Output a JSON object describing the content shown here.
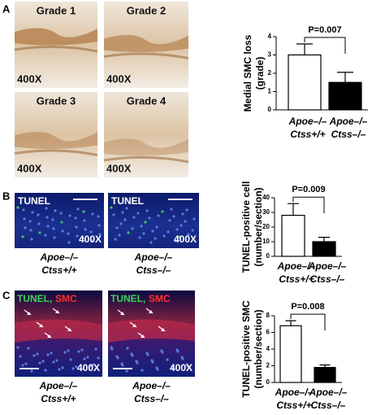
{
  "chart_data": [
    {
      "type": "bar",
      "y_label": [
        "Medial SMC loss",
        "(grade)"
      ],
      "categories": [
        [
          "Apoe–/–",
          "Ctss+/+"
        ],
        [
          "Apoe–/–",
          "Ctss–/–"
        ]
      ],
      "values": [
        3.0,
        1.5
      ],
      "errors": [
        0.6,
        0.55
      ],
      "colors": [
        "#ffffff",
        "#000000"
      ],
      "ylim": [
        0,
        4
      ],
      "yticks": [
        0,
        1,
        2,
        3,
        4
      ],
      "annotation": "P=0.007"
    },
    {
      "type": "bar",
      "y_label": [
        "TUNEL-positive cell",
        "(number/section)"
      ],
      "categories": [
        [
          "Apoe–/–",
          "Ctss+/+"
        ],
        [
          "Apoe–/–",
          "Ctss–/–"
        ]
      ],
      "values": [
        28,
        10
      ],
      "errors": [
        8,
        3
      ],
      "colors": [
        "#ffffff",
        "#000000"
      ],
      "ylim": [
        0,
        40
      ],
      "yticks": [
        0,
        10,
        20,
        30,
        40
      ],
      "annotation": "P=0.009"
    },
    {
      "type": "bar",
      "y_label": [
        "TUNEL-positive SMC",
        "(number/section)"
      ],
      "categories": [
        [
          "Apoe–/–",
          "Ctss+/+"
        ],
        [
          "Apoe–/–",
          "Ctss–/–"
        ]
      ],
      "values": [
        6.8,
        1.8
      ],
      "errors": [
        0.6,
        0.3
      ],
      "colors": [
        "#ffffff",
        "#000000"
      ],
      "ylim": [
        0,
        8
      ],
      "yticks": [
        0,
        2,
        4,
        6,
        8
      ],
      "annotation": "P=0.008"
    }
  ],
  "panels": [
    {
      "letter": "A",
      "images": [
        {
          "label": "Grade 1",
          "magnification": "400X"
        },
        {
          "label": "Grade 2",
          "magnification": "400X"
        },
        {
          "label": "Grade 3",
          "magnification": "400X"
        },
        {
          "label": "Grade 4",
          "magnification": "400X"
        }
      ]
    },
    {
      "letter": "B",
      "images": [
        {
          "label": "TUNEL",
          "magnification": "400X",
          "caption": [
            "Apoe–/–",
            "Ctss+/+"
          ]
        },
        {
          "label": "TUNEL",
          "magnification": "400X",
          "caption": [
            "Apoe–/–",
            "Ctss–/–"
          ]
        }
      ]
    },
    {
      "letter": "C",
      "images": [
        {
          "label_parts": [
            "TUNEL,",
            "SMC"
          ],
          "magnification": "400X",
          "caption": [
            "Apoe–/–",
            "Ctss+/+"
          ]
        },
        {
          "label_parts": [
            "TUNEL,",
            "SMC"
          ],
          "magnification": "400X",
          "caption": [
            "Apoe–/–",
            "Ctss–/–"
          ]
        }
      ]
    }
  ]
}
